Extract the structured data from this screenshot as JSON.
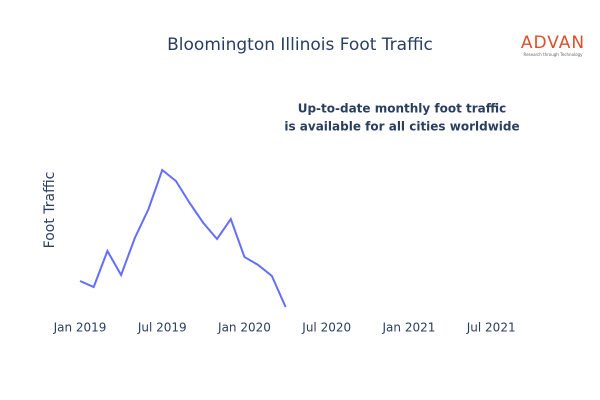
{
  "chart_data": {
    "type": "line",
    "title": "Bloomington Illinois Foot Traffic",
    "y_label": "Foot Traffic",
    "annotation": [
      "Up-to-date monthly foot traffic",
      "is available for all cities worldwide"
    ],
    "logo": {
      "name": "ADVAN",
      "tagline": "Research through Technology"
    },
    "x": [
      "2019-01",
      "2019-02",
      "2019-03",
      "2019-04",
      "2019-05",
      "2019-06",
      "2019-07",
      "2019-08",
      "2019-09",
      "2019-10",
      "2019-11",
      "2019-12",
      "2020-01",
      "2020-02",
      "2020-03",
      "2020-04"
    ],
    "series": [
      {
        "color": "#636efa",
        "values": [
          39,
          33,
          69,
          45,
          82,
          111,
          150,
          139,
          117,
          97,
          81,
          101,
          63,
          55,
          44,
          13
        ]
      }
    ],
    "xlim": [
      "2019-01",
      "2021-11"
    ],
    "xticks": [
      {
        "value": "2019-01",
        "label": "Jan 2019"
      },
      {
        "value": "2019-07",
        "label": "Jul 2019"
      },
      {
        "value": "2020-01",
        "label": "Jan 2020"
      },
      {
        "value": "2020-07",
        "label": "Jul 2020"
      },
      {
        "value": "2021-01",
        "label": "Jan 2021"
      },
      {
        "value": "2021-07",
        "label": "Jul 2021"
      }
    ],
    "ylim": [
      0,
      160
    ],
    "grid": false
  }
}
